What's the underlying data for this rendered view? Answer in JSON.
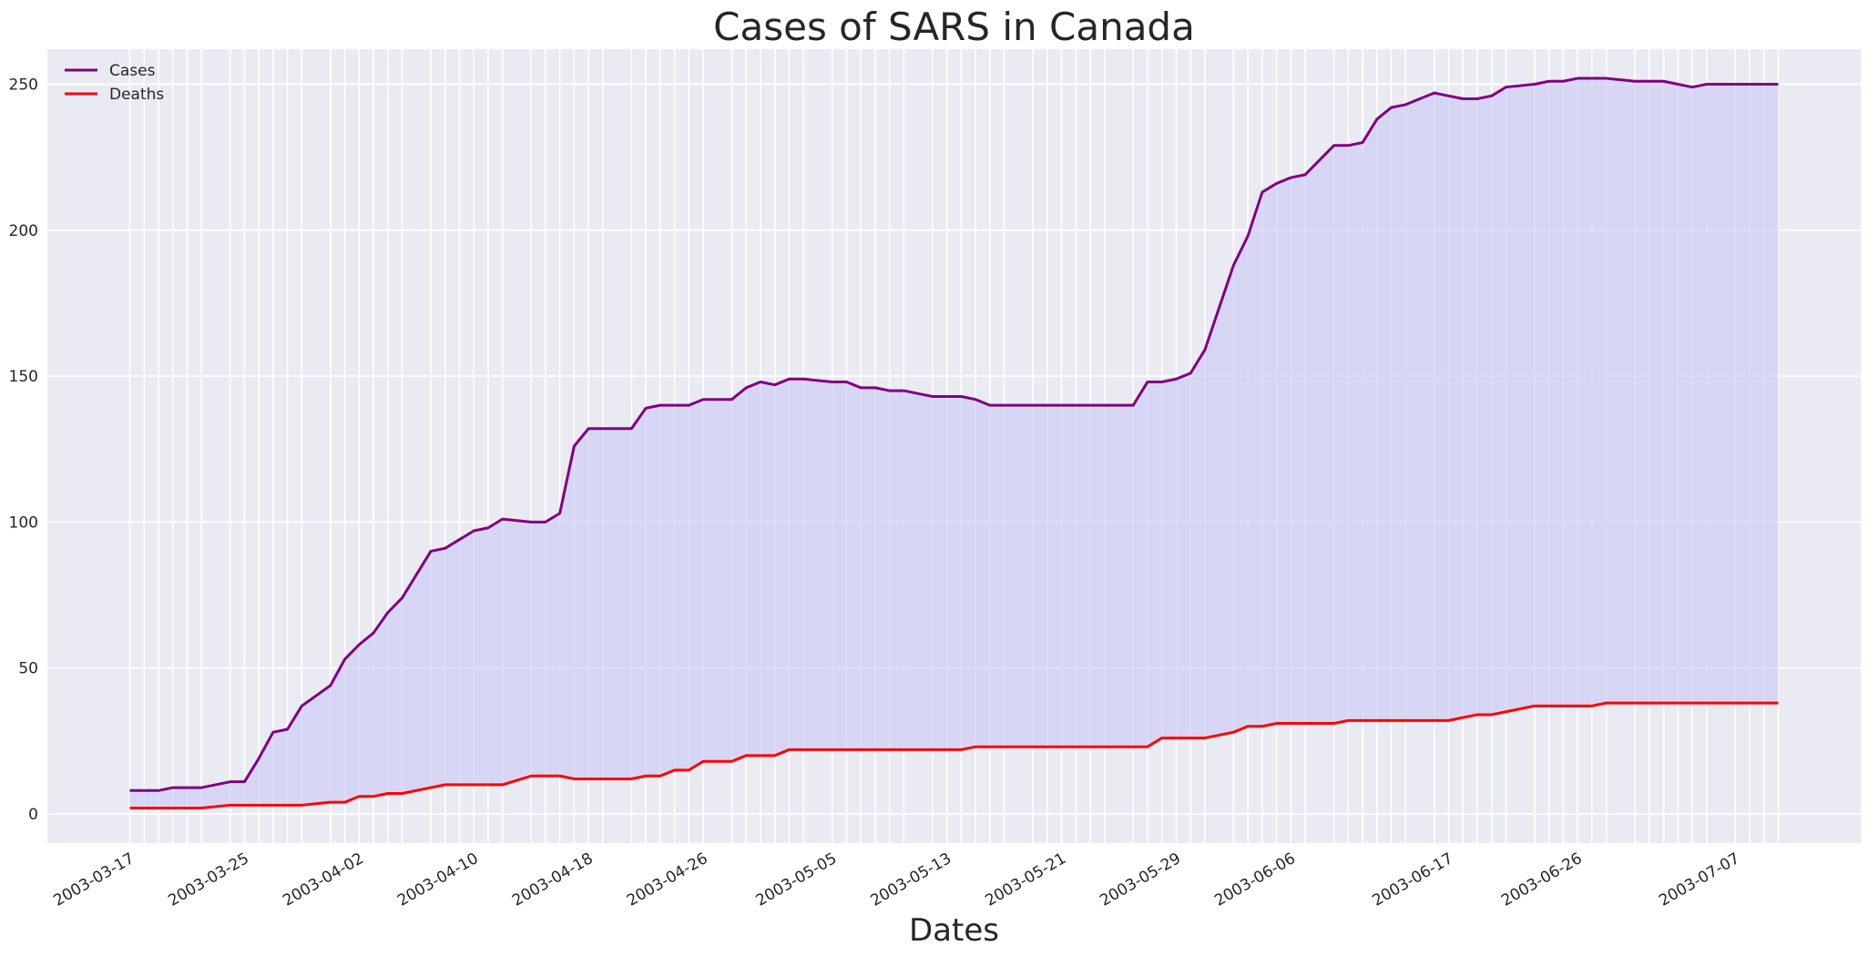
{
  "chart_data": {
    "type": "area",
    "title": "Cases of SARS in Canada",
    "xlabel": "Dates",
    "ylabel": "",
    "ylim": [
      -10,
      262
    ],
    "yticks": [
      0,
      50,
      100,
      150,
      200,
      250
    ],
    "grid": true,
    "legend_position": "top-left",
    "x": [
      "2003-03-17",
      "2003-03-18",
      "2003-03-19",
      "2003-03-20",
      "2003-03-21",
      "2003-03-22",
      "2003-03-24",
      "2003-03-25",
      "2003-03-26",
      "2003-03-27",
      "2003-03-28",
      "2003-03-29",
      "2003-03-31",
      "2003-04-01",
      "2003-04-02",
      "2003-04-03",
      "2003-04-04",
      "2003-04-05",
      "2003-04-07",
      "2003-04-08",
      "2003-04-09",
      "2003-04-10",
      "2003-04-11",
      "2003-04-12",
      "2003-04-14",
      "2003-04-15",
      "2003-04-16",
      "2003-04-17",
      "2003-04-18",
      "2003-04-19",
      "2003-04-21",
      "2003-04-22",
      "2003-04-23",
      "2003-04-24",
      "2003-04-25",
      "2003-04-26",
      "2003-04-28",
      "2003-04-29",
      "2003-04-30",
      "2003-05-01",
      "2003-05-02",
      "2003-05-03",
      "2003-05-05",
      "2003-05-06",
      "2003-05-07",
      "2003-05-08",
      "2003-05-09",
      "2003-05-10",
      "2003-05-12",
      "2003-05-13",
      "2003-05-14",
      "2003-05-15",
      "2003-05-16",
      "2003-05-17",
      "2003-05-19",
      "2003-05-20",
      "2003-05-21",
      "2003-05-22",
      "2003-05-23",
      "2003-05-24",
      "2003-05-26",
      "2003-05-27",
      "2003-05-28",
      "2003-05-29",
      "2003-05-30",
      "2003-05-31",
      "2003-06-02",
      "2003-06-03",
      "2003-06-04",
      "2003-06-05",
      "2003-06-06",
      "2003-06-07",
      "2003-06-09",
      "2003-06-10",
      "2003-06-11",
      "2003-06-12",
      "2003-06-13",
      "2003-06-14",
      "2003-06-16",
      "2003-06-17",
      "2003-06-18",
      "2003-06-19",
      "2003-06-20",
      "2003-06-21",
      "2003-06-23",
      "2003-06-24",
      "2003-06-25",
      "2003-06-26",
      "2003-06-27",
      "2003-06-28",
      "2003-06-30",
      "2003-07-01",
      "2003-07-02",
      "2003-07-03",
      "2003-07-04",
      "2003-07-05",
      "2003-07-07",
      "2003-07-08",
      "2003-07-09",
      "2003-07-10"
    ],
    "xtick_labels": [
      "2003-03-17",
      "2003-03-25",
      "2003-04-02",
      "2003-04-10",
      "2003-04-18",
      "2003-04-26",
      "2003-05-05",
      "2003-05-13",
      "2003-05-21",
      "2003-05-29",
      "2003-06-06",
      "2003-06-17",
      "2003-06-26",
      "2003-07-07"
    ],
    "series": [
      {
        "name": "Cases",
        "color": "#800080",
        "values": [
          8,
          8,
          8,
          9,
          9,
          9,
          11,
          11,
          19,
          28,
          29,
          37,
          44,
          53,
          58,
          62,
          69,
          74,
          90,
          91,
          94,
          97,
          98,
          101,
          100,
          100,
          103,
          126,
          132,
          132,
          132,
          139,
          140,
          140,
          140,
          142,
          142,
          146,
          148,
          147,
          149,
          149,
          148,
          148,
          146,
          146,
          145,
          145,
          143,
          143,
          143,
          142,
          140,
          140,
          140,
          140,
          140,
          140,
          140,
          140,
          140,
          148,
          148,
          149,
          151,
          159,
          188,
          198,
          213,
          216,
          218,
          219,
          229,
          229,
          230,
          238,
          242,
          243,
          247,
          246,
          245,
          245,
          246,
          249,
          250,
          251,
          251,
          252,
          252,
          252,
          251,
          251,
          251,
          250,
          249,
          250,
          250,
          250,
          250,
          250
        ]
      },
      {
        "name": "Deaths",
        "color": "#ff0000",
        "values": [
          2,
          2,
          2,
          2,
          2,
          2,
          3,
          3,
          3,
          3,
          3,
          3,
          4,
          4,
          6,
          6,
          7,
          7,
          9,
          10,
          10,
          10,
          10,
          10,
          13,
          13,
          13,
          12,
          12,
          12,
          12,
          13,
          13,
          15,
          15,
          18,
          18,
          20,
          20,
          20,
          22,
          22,
          22,
          22,
          22,
          22,
          22,
          22,
          22,
          22,
          22,
          23,
          23,
          23,
          23,
          23,
          23,
          23,
          23,
          23,
          23,
          23,
          26,
          26,
          26,
          26,
          28,
          30,
          30,
          31,
          31,
          31,
          31,
          32,
          32,
          32,
          32,
          32,
          32,
          32,
          33,
          34,
          34,
          35,
          37,
          37,
          37,
          37,
          37,
          38,
          38,
          38,
          38,
          38,
          38,
          38,
          38,
          38,
          38,
          38
        ]
      }
    ],
    "fill_color": "#c8c8f5",
    "background_color": "#eaeaf2"
  }
}
